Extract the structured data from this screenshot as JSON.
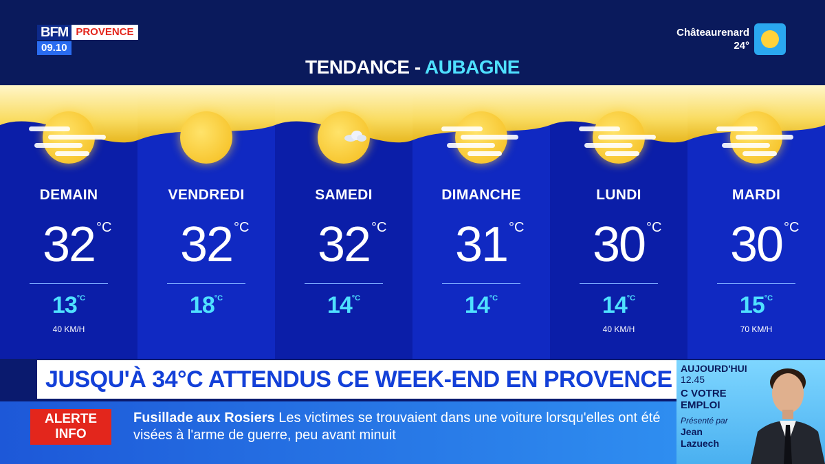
{
  "header": {
    "logo": "BFM",
    "region": "PROVENCE",
    "time": "09.10",
    "title_prefix": "TENDANCE",
    "title_sep": " - ",
    "title_city": "AUBAGNE",
    "location_name": "Châteaurenard",
    "location_temp": "24°",
    "location_icon": "sun-icon"
  },
  "forecast": {
    "days": [
      {
        "name": "DEMAIN",
        "max": "32",
        "max_unit": "°C",
        "min": "13",
        "min_unit": "°C",
        "wind": "40 KM/H",
        "icon": "hazy-sun-icon"
      },
      {
        "name": "VENDREDI",
        "max": "32",
        "max_unit": "°C",
        "min": "18",
        "min_unit": "°C",
        "wind": "",
        "icon": "sun-icon"
      },
      {
        "name": "SAMEDI",
        "max": "32",
        "max_unit": "°C",
        "min": "14",
        "min_unit": "°C",
        "wind": "",
        "icon": "sun-with-small-cloud-icon"
      },
      {
        "name": "DIMANCHE",
        "max": "31",
        "max_unit": "°C",
        "min": "14",
        "min_unit": "°C",
        "wind": "",
        "icon": "hazy-sun-icon"
      },
      {
        "name": "LUNDI",
        "max": "30",
        "max_unit": "°C",
        "min": "14",
        "min_unit": "°C",
        "wind": "40 KM/H",
        "icon": "hazy-sun-icon"
      },
      {
        "name": "MARDI",
        "max": "30",
        "max_unit": "°C",
        "min": "15",
        "min_unit": "°C",
        "wind": "70 KM/H",
        "icon": "hazy-sun-icon"
      }
    ]
  },
  "headline": "JUSQU'À 34°C ATTENDUS CE WEEK-END EN PROVENCE",
  "ticker": {
    "alert_line1": "ALERTE",
    "alert_line2": "INFO",
    "title": "Fusillade aux Rosiers",
    "text": "Les victimes se trouvaient dans une voiture lorsqu'elles ont été visées à l'arme de guerre, peu avant minuit"
  },
  "promo": {
    "today": "AUJOURD'HUI",
    "time": "12.45",
    "show_line1": "C VOTRE",
    "show_line2": "EMPLOI",
    "presented_by": "Présenté par",
    "host_first": "Jean",
    "host_last": "Lazuech"
  },
  "colors": {
    "accent_cyan": "#4fe0ff",
    "headline_blue": "#1340d8",
    "alert_red": "#e3261c",
    "band_dark": "#0b1ea8",
    "band_light": "#1029c2"
  }
}
